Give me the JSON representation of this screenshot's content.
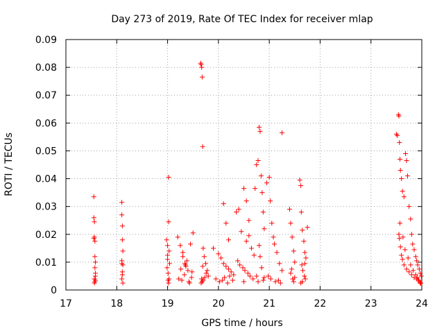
{
  "chart_data": {
    "type": "scatter",
    "title": "Day 273 of 2019, Rate Of TEC Index for receiver mlap",
    "xlabel": "GPS time / hours",
    "ylabel": "ROTI / TECUs",
    "xlim": [
      17,
      24
    ],
    "ylim": [
      0,
      0.09
    ],
    "x_ticks": [
      "17",
      "18",
      "19",
      "20",
      "21",
      "22",
      "23",
      "24"
    ],
    "y_ticks": [
      "0",
      "0.01",
      "0.02",
      "0.03",
      "0.04",
      "0.05",
      "0.06",
      "0.07",
      "0.08",
      "0.09"
    ],
    "grid": true,
    "marker": "+",
    "colors": {
      "marker": "#ff0000",
      "axis": "#000000",
      "grid": "#a0a0a0"
    },
    "series": [
      {
        "name": "ROTI",
        "x": [
          17.55,
          17.55,
          17.56,
          17.56,
          17.57,
          17.57,
          17.58,
          17.58,
          17.56,
          17.57,
          17.58,
          17.55,
          17.57,
          17.56,
          17.58,
          18.1,
          18.1,
          18.11,
          18.11,
          18.12,
          18.1,
          18.12,
          18.11,
          18.1,
          18.12,
          18.11,
          18.1,
          18.98,
          19.0,
          19.02,
          19.02,
          19.03,
          19.0,
          18.99,
          19.01,
          19.03,
          19.02,
          19.04,
          19.0,
          19.01,
          19.2,
          19.25,
          19.3,
          19.35,
          19.4,
          19.45,
          19.5,
          19.22,
          19.28,
          19.33,
          19.38,
          19.43,
          19.48,
          19.3,
          19.36,
          19.42,
          19.47,
          19.26,
          19.34,
          19.65,
          19.66,
          19.67,
          19.68,
          19.69,
          19.7,
          19.72,
          19.75,
          19.78,
          19.8,
          19.67,
          19.7,
          19.73,
          19.76,
          19.66,
          19.68,
          19.69,
          19.9,
          20.0,
          20.05,
          20.1,
          20.15,
          20.2,
          20.25,
          20.3,
          19.95,
          20.02,
          20.08,
          20.12,
          20.18,
          20.22,
          20.28,
          20.1,
          20.15,
          20.2,
          20.35,
          20.4,
          20.45,
          20.5,
          20.55,
          20.6,
          20.65,
          20.7,
          20.38,
          20.42,
          20.48,
          20.52,
          20.58,
          20.62,
          20.68,
          20.5,
          20.6,
          20.55,
          20.72,
          20.75,
          20.78,
          20.8,
          20.82,
          20.84,
          20.86,
          20.88,
          20.9,
          20.8,
          20.82,
          20.85,
          20.75,
          20.78,
          20.88,
          20.9,
          20.95,
          21.0,
          21.02,
          21.05,
          21.08,
          21.1,
          21.15,
          21.2,
          21.25,
          21.25,
          20.98,
          21.03,
          21.12,
          21.18,
          21.22,
          21.4,
          21.42,
          21.45,
          21.48,
          21.5,
          21.42,
          21.46,
          21.48,
          21.5,
          21.44,
          21.6,
          21.62,
          21.63,
          21.65,
          21.68,
          21.7,
          21.72,
          21.75,
          21.64,
          21.66,
          21.69,
          21.71,
          21.65,
          21.62,
          21.7,
          23.5,
          23.52,
          23.54,
          23.55,
          23.56,
          23.57,
          23.58,
          23.6,
          23.62,
          23.65,
          23.68,
          23.7,
          23.72,
          23.75,
          23.78,
          23.8,
          23.82,
          23.85,
          23.88,
          23.9,
          23.92,
          23.95,
          23.97,
          23.99,
          23.55,
          23.56,
          23.58,
          23.6,
          23.62,
          23.65,
          23.7,
          23.75,
          23.8,
          23.85,
          23.9,
          23.93,
          23.96,
          23.98,
          23.57,
          23.63,
          23.67,
          23.73,
          23.78,
          23.83,
          23.88,
          23.91,
          23.94,
          23.97
        ],
        "y": [
          0.0335,
          0.026,
          0.0245,
          0.019,
          0.0175,
          0.012,
          0.01,
          0.006,
          0.004,
          0.003,
          0.005,
          0.0185,
          0.008,
          0.0025,
          0.0035,
          0.0315,
          0.027,
          0.023,
          0.018,
          0.014,
          0.0105,
          0.009,
          0.0065,
          0.004,
          0.0025,
          0.0055,
          0.0095,
          0.018,
          0.016,
          0.0405,
          0.0245,
          0.014,
          0.011,
          0.008,
          0.006,
          0.004,
          0.0025,
          0.0095,
          0.0125,
          0.0035,
          0.019,
          0.016,
          0.012,
          0.009,
          0.007,
          0.0165,
          0.0205,
          0.004,
          0.0035,
          0.0055,
          0.0105,
          0.0025,
          0.0065,
          0.0135,
          0.0085,
          0.003,
          0.0045,
          0.0075,
          0.0095,
          0.0815,
          0.081,
          0.08,
          0.0765,
          0.0515,
          0.015,
          0.012,
          0.0095,
          0.007,
          0.005,
          0.004,
          0.0035,
          0.0045,
          0.006,
          0.0025,
          0.003,
          0.0085,
          0.015,
          0.013,
          0.0115,
          0.0095,
          0.0085,
          0.0075,
          0.0065,
          0.0055,
          0.004,
          0.003,
          0.0035,
          0.0045,
          0.0025,
          0.005,
          0.0035,
          0.031,
          0.024,
          0.018,
          0.028,
          0.029,
          0.021,
          0.0365,
          0.032,
          0.025,
          0.015,
          0.0125,
          0.0105,
          0.009,
          0.008,
          0.007,
          0.006,
          0.005,
          0.004,
          0.003,
          0.0195,
          0.0175,
          0.0365,
          0.045,
          0.0465,
          0.0585,
          0.057,
          0.041,
          0.035,
          0.028,
          0.022,
          0.016,
          0.012,
          0.008,
          0.005,
          0.003,
          0.0035,
          0.0045,
          0.0385,
          0.0405,
          0.032,
          0.024,
          0.019,
          0.0165,
          0.0135,
          0.0095,
          0.007,
          0.0565,
          0.005,
          0.004,
          0.003,
          0.0035,
          0.0025,
          0.029,
          0.024,
          0.019,
          0.014,
          0.01,
          0.006,
          0.004,
          0.003,
          0.0045,
          0.0075,
          0.0395,
          0.0375,
          0.028,
          0.0215,
          0.0175,
          0.0135,
          0.0115,
          0.0225,
          0.009,
          0.007,
          0.005,
          0.004,
          0.003,
          0.0025,
          0.0095,
          0.056,
          0.0555,
          0.063,
          0.0625,
          0.053,
          0.047,
          0.043,
          0.04,
          0.0355,
          0.0335,
          0.049,
          0.0465,
          0.041,
          0.03,
          0.0255,
          0.02,
          0.0165,
          0.0145,
          0.012,
          0.0105,
          0.009,
          0.0075,
          0.006,
          0.005,
          0.02,
          0.0185,
          0.0155,
          0.0125,
          0.011,
          0.009,
          0.0075,
          0.0065,
          0.0055,
          0.0045,
          0.004,
          0.0035,
          0.003,
          0.0025,
          0.024,
          0.019,
          0.0145,
          0.0115,
          0.009,
          0.007,
          0.0055,
          0.0045,
          0.0035,
          0.0024
        ]
      }
    ]
  }
}
